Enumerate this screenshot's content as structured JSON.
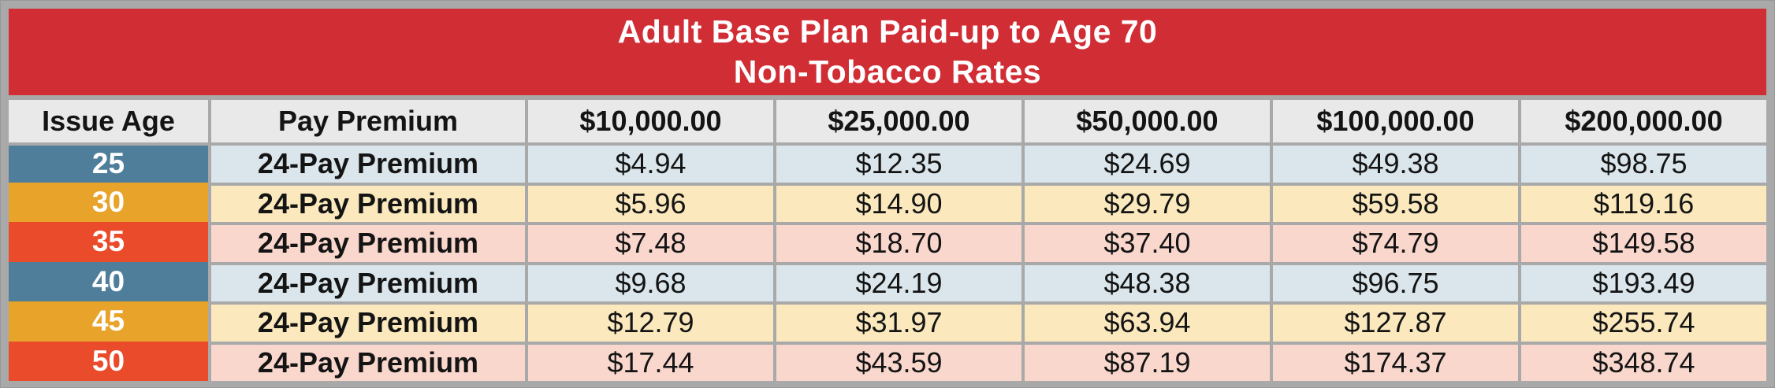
{
  "title": {
    "line1": "Adult Base Plan Paid-up to Age 70",
    "line2": "Non-Tobacco Rates"
  },
  "table": {
    "columns": [
      "Issue Age",
      "Pay Premium",
      "$10,000.00",
      "$25,000.00",
      "$50,000.00",
      "$100,000.00",
      "$200,000.00"
    ],
    "rows": [
      {
        "age": "25",
        "premium_type": "24-Pay Premium",
        "theme": "blue",
        "values": [
          "$4.94",
          "$12.35",
          "$24.69",
          "$49.38",
          "$98.75"
        ]
      },
      {
        "age": "30",
        "premium_type": "24-Pay Premium",
        "theme": "gold",
        "values": [
          "$5.96",
          "$14.90",
          "$29.79",
          "$59.58",
          "$119.16"
        ]
      },
      {
        "age": "35",
        "premium_type": "24-Pay Premium",
        "theme": "red",
        "values": [
          "$7.48",
          "$18.70",
          "$37.40",
          "$74.79",
          "$149.58"
        ]
      },
      {
        "age": "40",
        "premium_type": "24-Pay Premium",
        "theme": "blue",
        "values": [
          "$9.68",
          "$24.19",
          "$48.38",
          "$96.75",
          "$193.49"
        ]
      },
      {
        "age": "45",
        "premium_type": "24-Pay Premium",
        "theme": "gold",
        "values": [
          "$12.79",
          "$31.97",
          "$63.94",
          "$127.87",
          "$255.74"
        ]
      },
      {
        "age": "50",
        "premium_type": "24-Pay Premium",
        "theme": "red",
        "values": [
          "$17.44",
          "$43.59",
          "$87.19",
          "$174.37",
          "$348.74"
        ]
      }
    ]
  },
  "colors": {
    "frame_gray": "#a9a9a9",
    "banner_red": "#d12d35",
    "header_gray": "#e9e9e9",
    "age_blue": "#4f7e9b",
    "age_gold": "#e8a32a",
    "age_red": "#ea4b2a",
    "row_blue": "#dbe6ec",
    "row_gold": "#fbe9bd",
    "row_red": "#f9d7cd",
    "title_text": "#ffffff",
    "body_text": "#141414"
  }
}
